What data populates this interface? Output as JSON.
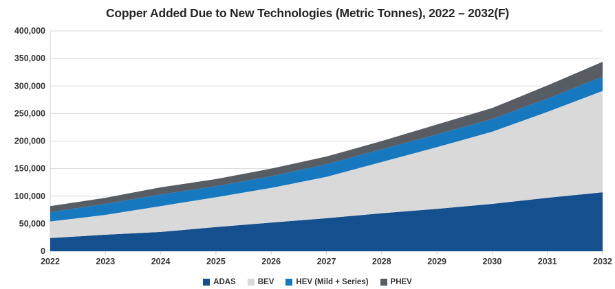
{
  "chart_data": {
    "type": "area",
    "stacked": true,
    "title": "Copper Added Due to New Technologies (Metric Tonnes), 2022 – 2032(F)",
    "x_labels": [
      "2022",
      "2023",
      "2024",
      "2025",
      "2026",
      "2027",
      "2028",
      "2029",
      "2030",
      "2031",
      "2032"
    ],
    "series": [
      {
        "name": "ADAS",
        "color": "#14508e",
        "values": [
          24000,
          30000,
          35000,
          44000,
          52000,
          60000,
          69000,
          77000,
          86000,
          97000,
          107000
        ]
      },
      {
        "name": "BEV",
        "color": "#d9d9d9",
        "values": [
          30000,
          36000,
          47000,
          54000,
          63000,
          75000,
          93000,
          112000,
          131000,
          156000,
          184000
        ]
      },
      {
        "name": "HEV (Mild + Series)",
        "color": "#1679c0",
        "values": [
          17000,
          20000,
          21000,
          20000,
          21000,
          23000,
          23000,
          23000,
          23000,
          24000,
          26000
        ]
      },
      {
        "name": "PHEV",
        "color": "#585d63",
        "values": [
          11000,
          11000,
          13000,
          13000,
          14000,
          14000,
          15000,
          18000,
          20000,
          24000,
          27000
        ]
      }
    ],
    "ylim": [
      0,
      400000
    ],
    "ytick_step": 50000,
    "y_tick_labels": [
      "0",
      "50,000",
      "100,000",
      "150,000",
      "200,000",
      "250,000",
      "300,000",
      "350,000",
      "400,000"
    ],
    "grid": true,
    "legend_position": "bottom",
    "colors": {
      "gridline": "#d9d9d9",
      "axis_line": "#c3d2e0",
      "tick_mark": "#c9cdd2",
      "text": "#333333",
      "title_text": "#262626",
      "background": "#ffffff"
    }
  }
}
